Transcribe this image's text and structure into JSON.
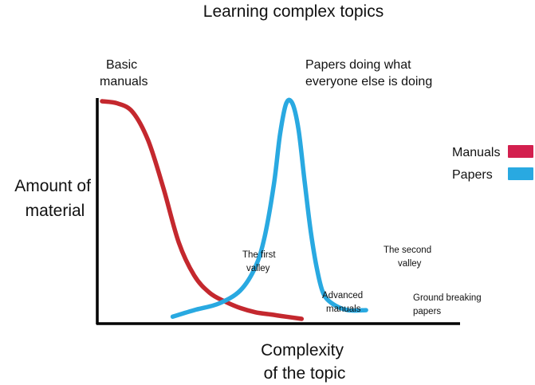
{
  "chart_data": {
    "type": "line",
    "title": "Learning complex topics",
    "xlabel": [
      "Complexity",
      "of the topic"
    ],
    "ylabel": [
      "Amount of",
      "material"
    ],
    "grid": false,
    "legend_position": "right",
    "x": [
      0,
      0.1,
      0.2,
      0.3,
      0.35,
      0.4,
      0.45,
      0.5,
      0.55,
      0.6,
      0.62,
      0.64,
      0.66,
      0.68,
      0.7,
      0.72,
      0.74,
      0.76,
      0.78,
      0.8,
      0.85,
      0.9,
      0.95,
      1.0
    ],
    "series": [
      {
        "name": "Manuals",
        "color": "#c4282e",
        "x": [
          0,
          0.05,
          0.1,
          0.15,
          0.2,
          0.25,
          0.3,
          0.35,
          0.4,
          0.45,
          0.5,
          0.55,
          0.6,
          0.65
        ],
        "values": [
          1.0,
          0.99,
          0.95,
          0.82,
          0.6,
          0.35,
          0.2,
          0.12,
          0.08,
          0.05,
          0.03,
          0.02,
          0.01,
          0.0
        ]
      },
      {
        "name": "Papers",
        "color": "#29a9e1",
        "x": [
          0.23,
          0.3,
          0.38,
          0.45,
          0.5,
          0.53,
          0.56,
          0.58,
          0.6,
          0.62,
          0.64,
          0.66,
          0.68,
          0.7,
          0.72,
          0.75,
          0.8,
          0.86
        ],
        "values": [
          0.01,
          0.04,
          0.07,
          0.13,
          0.24,
          0.38,
          0.62,
          0.85,
          0.99,
          0.99,
          0.87,
          0.63,
          0.4,
          0.23,
          0.12,
          0.07,
          0.04,
          0.04
        ]
      }
    ],
    "annotations": [
      {
        "id": "basic",
        "lines": [
          "Basic",
          "manuals"
        ]
      },
      {
        "id": "papers-peak",
        "lines": [
          "Papers doing what",
          "everyone else is doing"
        ]
      },
      {
        "id": "first-valley",
        "lines": [
          "The first",
          "valley"
        ]
      },
      {
        "id": "second-valley",
        "lines": [
          "The second",
          "valley"
        ]
      },
      {
        "id": "advanced",
        "lines": [
          "Advanced",
          "manuals"
        ]
      },
      {
        "id": "ground-breaking",
        "lines": [
          "Ground breaking",
          "papers"
        ]
      }
    ],
    "legend": [
      {
        "label": "Manuals",
        "color": "#d31f4e"
      },
      {
        "label": "Papers",
        "color": "#29a9e1"
      }
    ]
  }
}
